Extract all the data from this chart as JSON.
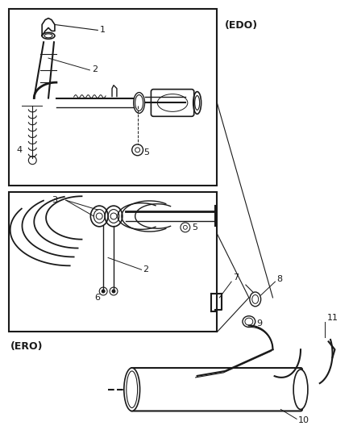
{
  "bg_color": "#ffffff",
  "line_color": "#1a1a1a",
  "box1_label": "(EDO)",
  "box2_label": "(ERO)",
  "figsize": [
    4.38,
    5.33
  ],
  "dpi": 100
}
